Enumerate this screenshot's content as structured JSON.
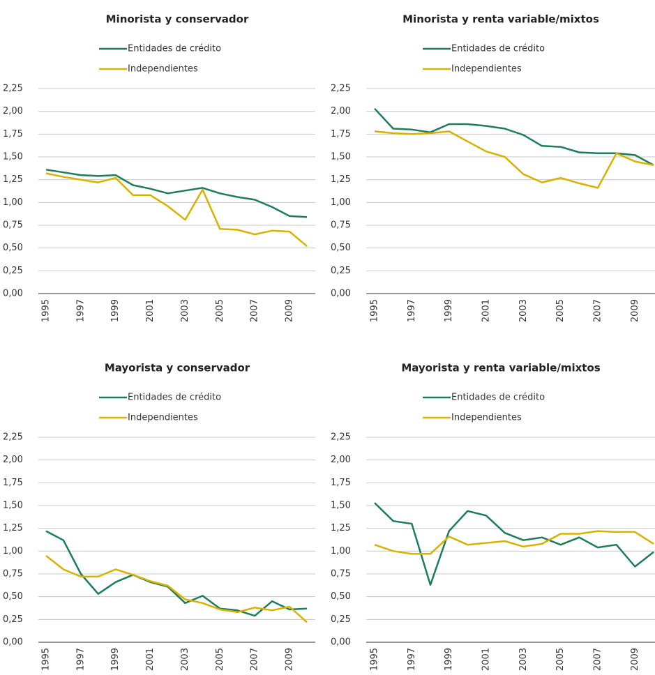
{
  "chart_data": [
    {
      "type": "line",
      "title": "Minorista y conservador",
      "categories": [
        "1995",
        null,
        "1997",
        null,
        "1999",
        null,
        "2001",
        null,
        "2003",
        null,
        "2005",
        null,
        "2007",
        null,
        "2009",
        null
      ],
      "series": [
        {
          "name": "Entidades de crédito",
          "color": "#1b7d5a",
          "values": [
            1.36,
            1.33,
            1.3,
            1.29,
            1.3,
            1.19,
            1.15,
            1.1,
            1.13,
            1.16,
            1.1,
            1.06,
            1.03,
            0.95,
            0.85,
            0.84
          ]
        },
        {
          "name": "Independientes",
          "color": "#d9b200",
          "values": [
            1.32,
            1.28,
            1.25,
            1.22,
            1.27,
            1.08,
            1.08,
            0.96,
            0.81,
            1.14,
            0.71,
            0.7,
            0.65,
            0.69,
            0.68,
            0.52
          ]
        }
      ],
      "ylim": [
        0,
        2.25
      ],
      "yticks": [
        {
          "value": 0,
          "label": "0,00"
        },
        {
          "value": 0.25,
          "label": "0,25"
        },
        {
          "value": 0.5,
          "label": "0,50"
        },
        {
          "value": 0.75,
          "label": "0,75"
        },
        {
          "value": 1,
          "label": "1,00"
        },
        {
          "value": 1.25,
          "label": "1,25"
        },
        {
          "value": 1.5,
          "label": "1,50"
        },
        {
          "value": 1.75,
          "label": "1,75"
        },
        {
          "value": 2,
          "label": "2,00"
        },
        {
          "value": 2.25,
          "label": "2,25"
        }
      ],
      "grid": true
    },
    {
      "type": "line",
      "title": "Minorista y renta variable/mixtos",
      "categories": [
        "1995",
        null,
        "1997",
        null,
        "1999",
        null,
        "2001",
        null,
        "2003",
        null,
        "2005",
        null,
        "2007",
        null,
        "2009",
        null
      ],
      "series": [
        {
          "name": "Entidades de crédito",
          "color": "#1b7d5a",
          "values": [
            2.03,
            1.81,
            1.8,
            1.77,
            1.86,
            1.86,
            1.84,
            1.81,
            1.74,
            1.62,
            1.61,
            1.55,
            1.54,
            1.54,
            1.52,
            1.41
          ]
        },
        {
          "name": "Independientes",
          "color": "#d9b200",
          "values": [
            1.78,
            1.76,
            1.75,
            1.76,
            1.78,
            1.67,
            1.56,
            1.5,
            1.31,
            1.22,
            1.27,
            1.21,
            1.16,
            1.54,
            1.45,
            1.41
          ]
        }
      ],
      "ylim": [
        0,
        2.25
      ],
      "yticks": [
        {
          "value": 0,
          "label": "0,00"
        },
        {
          "value": 0.25,
          "label": "0,25"
        },
        {
          "value": 0.5,
          "label": "0,50"
        },
        {
          "value": 0.75,
          "label": "0,75"
        },
        {
          "value": 1,
          "label": "1,00"
        },
        {
          "value": 1.25,
          "label": "1,25"
        },
        {
          "value": 1.5,
          "label": "1,50"
        },
        {
          "value": 1.75,
          "label": "1,75"
        },
        {
          "value": 2,
          "label": "2,00"
        },
        {
          "value": 2.25,
          "label": "2,25"
        }
      ],
      "grid": true
    },
    {
      "type": "line",
      "title": "Mayorista y conservador",
      "categories": [
        "1995",
        null,
        "1997",
        null,
        "1999",
        null,
        "2001",
        null,
        "2003",
        null,
        "2005",
        null,
        "2007",
        null,
        "2009",
        null
      ],
      "series": [
        {
          "name": "Entidades de crédito",
          "color": "#1b7d5a",
          "values": [
            1.22,
            1.12,
            0.75,
            0.53,
            0.66,
            0.74,
            0.66,
            0.61,
            0.43,
            0.51,
            0.37,
            0.35,
            0.29,
            0.45,
            0.36,
            0.37
          ]
        },
        {
          "name": "Independientes",
          "color": "#d9b200",
          "values": [
            0.95,
            0.8,
            0.72,
            0.72,
            0.8,
            0.74,
            0.67,
            0.62,
            0.47,
            0.43,
            0.36,
            0.33,
            0.38,
            0.35,
            0.39,
            0.22
          ]
        }
      ],
      "ylim": [
        0,
        2.25
      ],
      "yticks": [
        {
          "value": 0,
          "label": "0,00"
        },
        {
          "value": 0.25,
          "label": "0,25"
        },
        {
          "value": 0.5,
          "label": "0,50"
        },
        {
          "value": 0.75,
          "label": "0,75"
        },
        {
          "value": 1,
          "label": "1,00"
        },
        {
          "value": 1.25,
          "label": "1,25"
        },
        {
          "value": 1.5,
          "label": "1,50"
        },
        {
          "value": 1.75,
          "label": "1,75"
        },
        {
          "value": 2,
          "label": "2,00"
        },
        {
          "value": 2.25,
          "label": "2,25"
        }
      ],
      "grid": true
    },
    {
      "type": "line",
      "title": "Mayorista y renta variable/mixtos",
      "categories": [
        "1995",
        null,
        "1997",
        null,
        "1999",
        null,
        "2001",
        null,
        "2003",
        null,
        "2005",
        null,
        "2007",
        null,
        "2009",
        null
      ],
      "series": [
        {
          "name": "Entidades de crédito",
          "color": "#1b7d5a",
          "values": [
            1.53,
            1.33,
            1.3,
            0.63,
            1.22,
            1.44,
            1.39,
            1.2,
            1.12,
            1.15,
            1.07,
            1.15,
            1.04,
            1.07,
            0.83,
            0.99
          ]
        },
        {
          "name": "Independientes",
          "color": "#d9b200",
          "values": [
            1.07,
            1.0,
            0.97,
            0.97,
            1.16,
            1.07,
            1.09,
            1.11,
            1.05,
            1.08,
            1.19,
            1.19,
            1.22,
            1.21,
            1.21,
            1.08
          ]
        }
      ],
      "ylim": [
        0,
        2.25
      ],
      "yticks": [
        {
          "value": 0,
          "label": "0,00"
        },
        {
          "value": 0.25,
          "label": "0,25"
        },
        {
          "value": 0.5,
          "label": "0,50"
        },
        {
          "value": 0.75,
          "label": "0,75"
        },
        {
          "value": 1,
          "label": "1,00"
        },
        {
          "value": 1.25,
          "label": "1,25"
        },
        {
          "value": 1.5,
          "label": "1,50"
        },
        {
          "value": 1.75,
          "label": "1,75"
        },
        {
          "value": 2,
          "label": "2,00"
        },
        {
          "value": 2.25,
          "label": "2,25"
        }
      ],
      "grid": true
    }
  ]
}
